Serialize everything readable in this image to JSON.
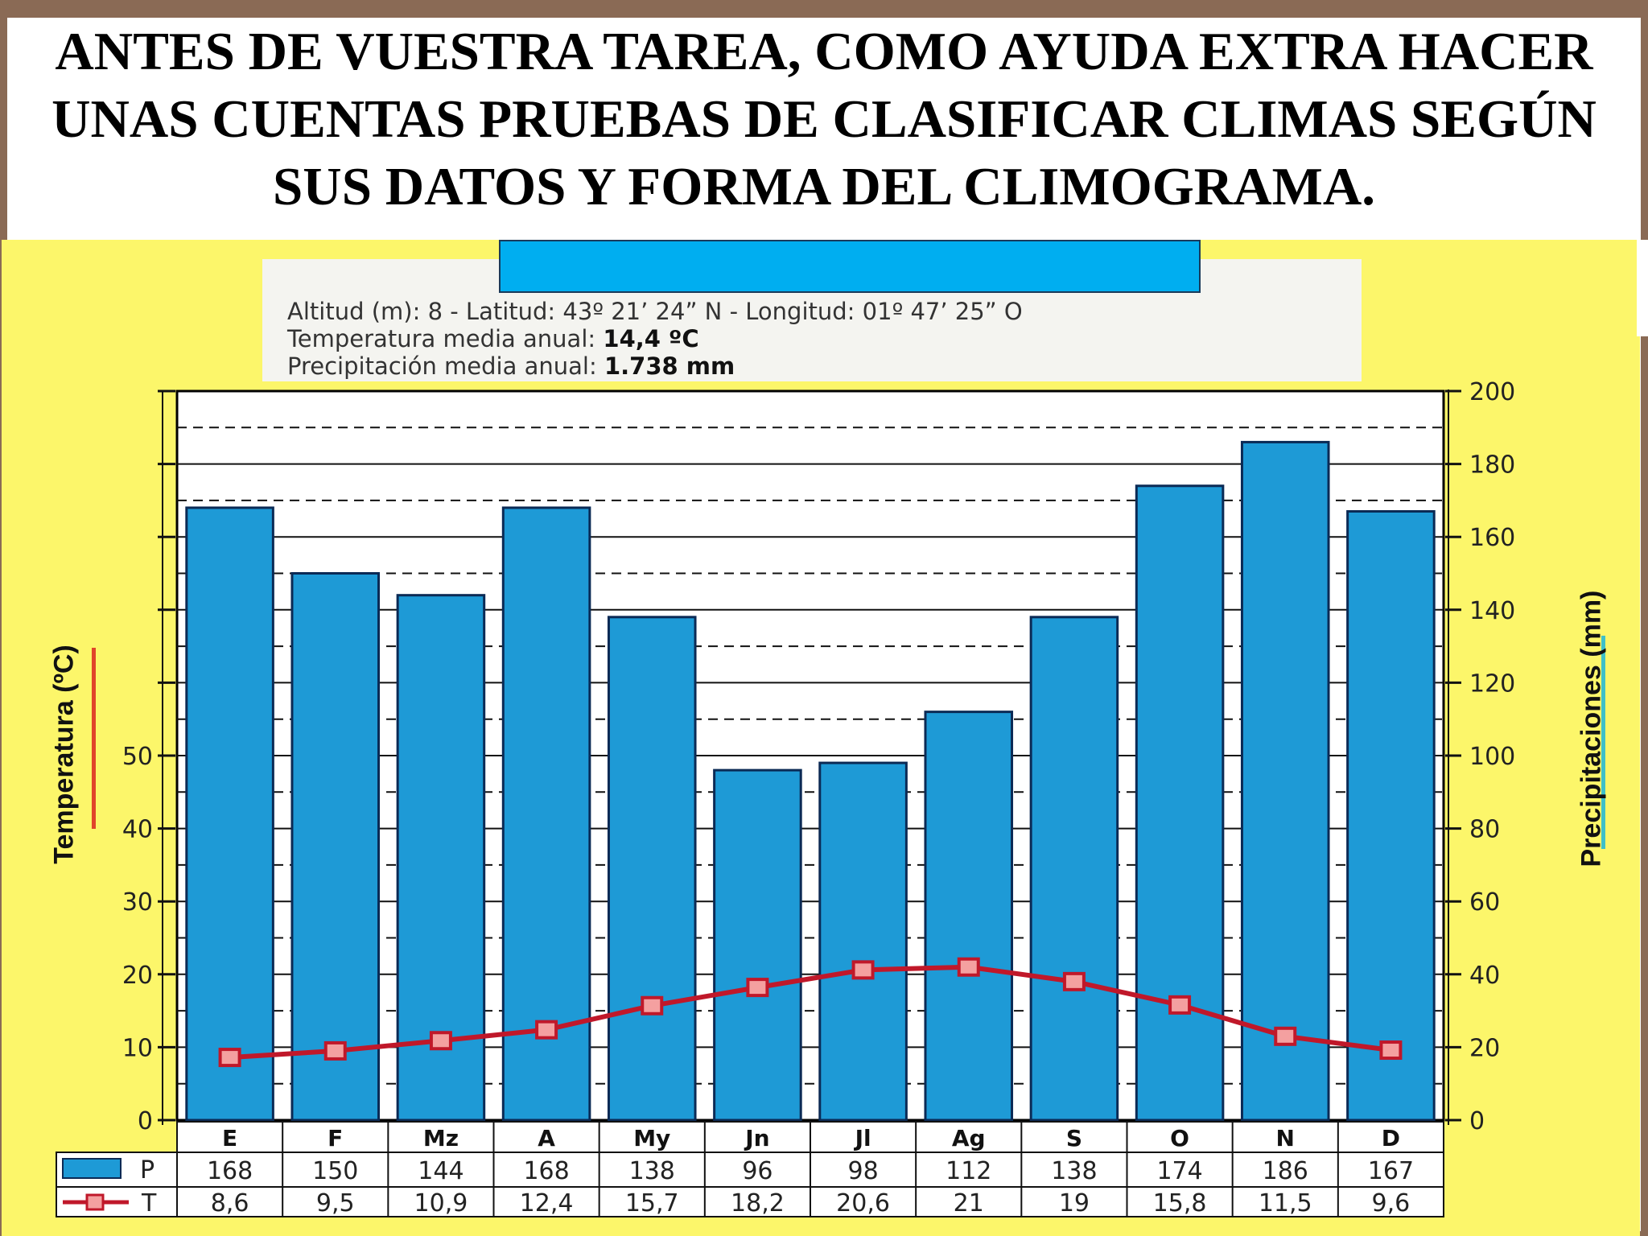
{
  "slide": {
    "title_lines": [
      "ANTES DE VUESTRA TAREA, COMO AYUDA EXTRA HACER",
      "UNAS CUENTAS PRUEBAS DE CLASIFICAR CLIMAS SEGÚN",
      "SUS DATOS Y FORMA DEL CLIMOGRAMA."
    ],
    "banner_color": "#00aef0",
    "background_color": "#fcf66a"
  },
  "info": {
    "line1": "Altitud (m): 8 - Latitud: 43º 21’ 24” N - Longitud: 01º 47’ 25” O",
    "line2_label": "Temperatura media anual: ",
    "line2_value": "14,4 ºC",
    "line3_label": "Precipitación media anual: ",
    "line3_value": "1.738 mm"
  },
  "chart_data": {
    "type": "bar",
    "categories": [
      "E",
      "F",
      "Mz",
      "A",
      "My",
      "Jn",
      "Jl",
      "Ag",
      "S",
      "O",
      "N",
      "D"
    ],
    "series": [
      {
        "name": "P",
        "type": "bar",
        "axis": "right",
        "color": "#1e9ad6",
        "values": [
          168,
          150,
          144,
          168,
          138,
          96,
          98,
          112,
          138,
          174,
          186,
          167
        ],
        "labels": [
          "168",
          "150",
          "144",
          "168",
          "138",
          "96",
          "98",
          "112",
          "138",
          "174",
          "186",
          "167"
        ]
      },
      {
        "name": "T",
        "type": "line",
        "axis": "left",
        "color": "#c0182a",
        "values": [
          8.6,
          9.5,
          10.9,
          12.4,
          15.7,
          18.2,
          20.6,
          21,
          19,
          15.8,
          11.5,
          9.6
        ],
        "labels": [
          "8,6",
          "9,5",
          "10,9",
          "12,4",
          "15,7",
          "18,2",
          "20,6",
          "21",
          "19",
          "15,8",
          "11,5",
          "9,6"
        ]
      }
    ],
    "y_left": {
      "label": "Temperatura (ºC)",
      "ticks": [
        0,
        10,
        20,
        30,
        40,
        50
      ],
      "range": [
        0,
        100
      ]
    },
    "y_right": {
      "label": "Precipitaciones (mm)",
      "ticks": [
        0,
        20,
        40,
        60,
        80,
        100,
        120,
        140,
        160,
        180,
        200
      ],
      "range": [
        0,
        200
      ]
    },
    "grid": true,
    "legend": "table-bottom"
  }
}
